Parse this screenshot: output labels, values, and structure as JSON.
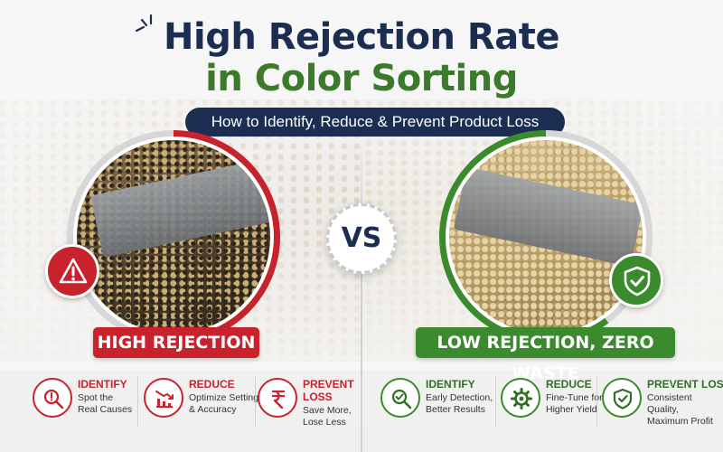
{
  "title": {
    "line1": "High Rejection Rate",
    "line2": "in Color Sorting",
    "line1_color": "#1b2e52",
    "line2_color": "#3a7a2a"
  },
  "subtitle": "How to Identify, Reduce & Prevent Product Loss",
  "vs_label": "VS",
  "left": {
    "accent": "#c8222c",
    "status_icon": "warning-triangle-icon",
    "label": "HIGH REJECTION",
    "features": [
      {
        "icon": "magnifier-alert-icon",
        "heading": "IDENTIFY",
        "body_lines": [
          "Spot the",
          "Real Causes"
        ]
      },
      {
        "icon": "declining-chart-icon",
        "heading": "REDUCE",
        "body_lines": [
          "Optimize Settings",
          "& Accuracy"
        ]
      },
      {
        "icon": "rupee-icon",
        "heading_lines": [
          "PREVENT",
          "LOSS"
        ],
        "body_lines": [
          "Save More,",
          "Lose Less"
        ]
      }
    ]
  },
  "right": {
    "accent": "#3c8a2e",
    "status_icon": "shield-check-icon",
    "label": "LOW REJECTION, ZERO WASTE",
    "features": [
      {
        "icon": "magnifier-check-icon",
        "heading": "IDENTIFY",
        "body_lines": [
          "Early Detection,",
          "Better Results"
        ]
      },
      {
        "icon": "gear-icon",
        "heading": "REDUCE",
        "body_lines": [
          "Fine-Tune for",
          "Higher Yield"
        ]
      },
      {
        "icon": "shield-check-icon",
        "heading": "PREVENT LOSS",
        "body_lines": [
          "Consistent Quality,",
          "Maximum Profit"
        ]
      }
    ]
  }
}
